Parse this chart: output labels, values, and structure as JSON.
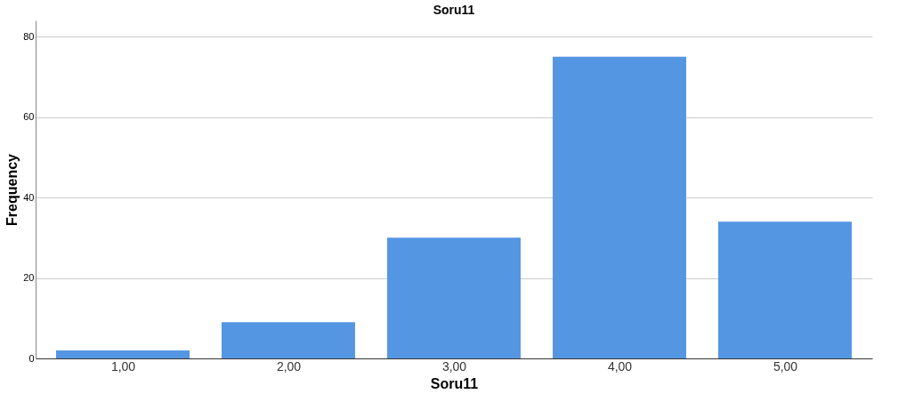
{
  "chart_data": {
    "type": "bar",
    "title": "Soru11",
    "xlabel": "Soru11",
    "ylabel": "Frequency",
    "categories": [
      "1,00",
      "2,00",
      "3,00",
      "4,00",
      "5,00"
    ],
    "series": [
      {
        "color": "#5596e3",
        "values": [
          2,
          9,
          30,
          75,
          34
        ]
      }
    ],
    "ylim": [
      0,
      84
    ],
    "yticks": [
      0,
      20,
      40,
      60,
      80
    ],
    "grid": "y",
    "legend": false
  }
}
